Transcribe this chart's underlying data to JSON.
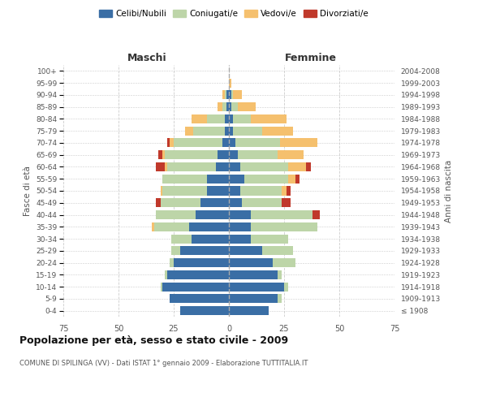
{
  "age_groups": [
    "100+",
    "95-99",
    "90-94",
    "85-89",
    "80-84",
    "75-79",
    "70-74",
    "65-69",
    "60-64",
    "55-59",
    "50-54",
    "45-49",
    "40-44",
    "35-39",
    "30-34",
    "25-29",
    "20-24",
    "15-19",
    "10-14",
    "5-9",
    "0-4"
  ],
  "birth_years": [
    "≤ 1908",
    "1909-1913",
    "1914-1918",
    "1919-1923",
    "1924-1928",
    "1929-1933",
    "1934-1938",
    "1939-1943",
    "1944-1948",
    "1949-1953",
    "1954-1958",
    "1959-1963",
    "1964-1968",
    "1969-1973",
    "1974-1978",
    "1979-1983",
    "1984-1988",
    "1989-1993",
    "1994-1998",
    "1999-2003",
    "2004-2008"
  ],
  "colors": {
    "celibe": "#3A6EA5",
    "coniugato": "#BDD5A8",
    "vedovo": "#F5C06E",
    "divorziato": "#C0392B"
  },
  "males": {
    "celibe": [
      0,
      0,
      1,
      1,
      2,
      2,
      3,
      5,
      6,
      10,
      10,
      13,
      15,
      18,
      17,
      22,
      25,
      28,
      30,
      27,
      22
    ],
    "coniugato": [
      0,
      0,
      1,
      2,
      8,
      14,
      22,
      24,
      22,
      20,
      20,
      18,
      18,
      16,
      9,
      4,
      2,
      1,
      1,
      0,
      0
    ],
    "vedovo": [
      0,
      0,
      1,
      2,
      7,
      4,
      2,
      1,
      1,
      0,
      1,
      0,
      0,
      1,
      0,
      0,
      0,
      0,
      0,
      0,
      0
    ],
    "divorziato": [
      0,
      0,
      0,
      0,
      0,
      0,
      1,
      2,
      4,
      0,
      0,
      2,
      0,
      0,
      0,
      0,
      0,
      0,
      0,
      0,
      0
    ]
  },
  "females": {
    "nubile": [
      0,
      0,
      1,
      1,
      2,
      2,
      3,
      4,
      5,
      7,
      5,
      6,
      10,
      10,
      10,
      15,
      20,
      22,
      25,
      22,
      18
    ],
    "coniugata": [
      0,
      0,
      1,
      3,
      8,
      13,
      20,
      18,
      22,
      20,
      19,
      18,
      28,
      30,
      17,
      14,
      10,
      2,
      2,
      2,
      0
    ],
    "vedova": [
      0,
      1,
      4,
      8,
      16,
      14,
      17,
      12,
      8,
      3,
      2,
      0,
      0,
      0,
      0,
      0,
      0,
      0,
      0,
      0,
      0
    ],
    "divorziata": [
      0,
      0,
      0,
      0,
      0,
      0,
      0,
      0,
      2,
      2,
      2,
      4,
      3,
      0,
      0,
      0,
      0,
      0,
      0,
      0,
      0
    ]
  },
  "xlim": 75,
  "title": "Popolazione per età, sesso e stato civile - 2009",
  "subtitle": "COMUNE DI SPILINGA (VV) - Dati ISTAT 1° gennaio 2009 - Elaborazione TUTTITALIA.IT",
  "xlabel_left": "Maschi",
  "xlabel_right": "Femmine",
  "ylabel_left": "Fasce di età",
  "ylabel_right": "Anni di nascita"
}
